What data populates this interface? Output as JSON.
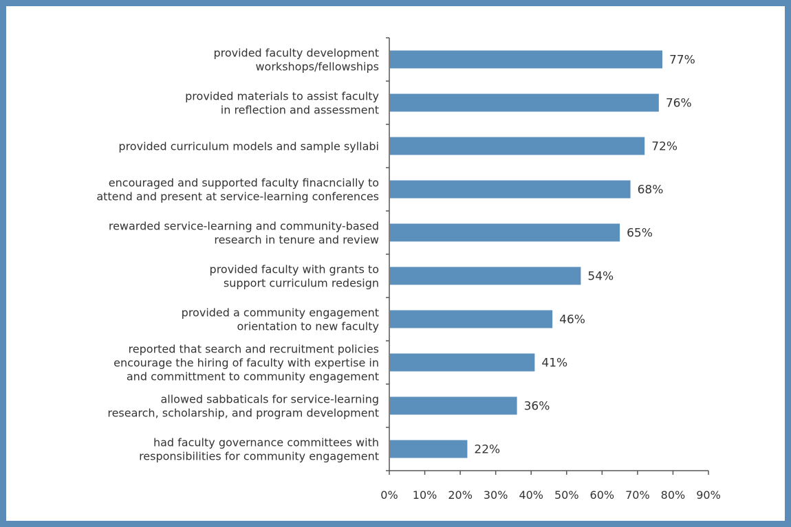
{
  "chart_data": {
    "type": "bar",
    "orientation": "horizontal",
    "title": "",
    "xlabel": "",
    "ylabel": "",
    "xlim": [
      0,
      90
    ],
    "x_ticks": [
      "0%",
      "10%",
      "20%",
      "30%",
      "40%",
      "50%",
      "60%",
      "70%",
      "80%",
      "90%"
    ],
    "grid": false,
    "bar_color": "#5b8fbc",
    "frame_color": "#5b8bb7",
    "categories": [
      [
        "provided faculty development",
        "workshops/fellowships"
      ],
      [
        "provided materials to assist faculty",
        "in reflection and assessment"
      ],
      [
        "provided curriculum models and sample syllabi"
      ],
      [
        "encouraged and supported faculty finacncially to",
        "attend and present at service-learning conferences"
      ],
      [
        "rewarded service-learning and community-based",
        "research in tenure and review"
      ],
      [
        "provided faculty with grants to",
        "support curriculum redesign"
      ],
      [
        "provided a community engagement",
        "orientation to new faculty"
      ],
      [
        "reported that search and recruitment policies",
        "encourage the hiring of faculty with expertise in",
        "and committment to community engagement"
      ],
      [
        "allowed sabbaticals for service-learning",
        "research, scholarship, and program development"
      ],
      [
        "had faculty governance committees with",
        "responsibilities for community engagement"
      ]
    ],
    "values": [
      77,
      76,
      72,
      68,
      65,
      54,
      46,
      41,
      36,
      22
    ],
    "value_labels": [
      "77%",
      "76%",
      "72%",
      "68%",
      "65%",
      "54%",
      "46%",
      "41%",
      "36%",
      "22%"
    ]
  }
}
